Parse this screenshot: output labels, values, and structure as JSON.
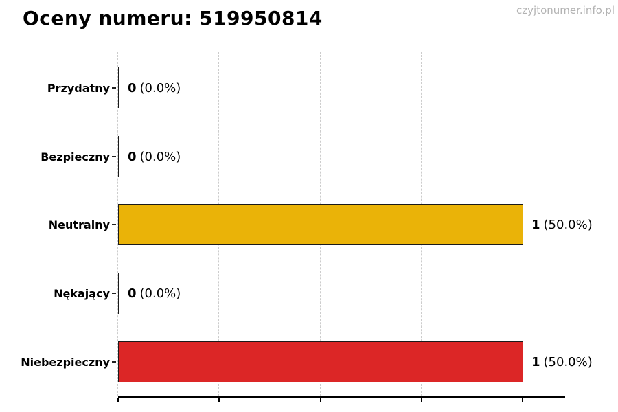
{
  "header": {
    "title": "Oceny numeru: 519950814",
    "watermark": "czyjtonumer.info.pl"
  },
  "chart_data": {
    "type": "bar",
    "orientation": "horizontal",
    "title": "Oceny numeru: 519950814",
    "categories": [
      "Przydatny",
      "Bezpieczny",
      "Neutralny",
      "Nękający",
      "Niebezpieczny"
    ],
    "values": [
      0,
      0,
      1,
      0,
      1
    ],
    "percentages": [
      0.0,
      0.0,
      50.0,
      0.0,
      50.0
    ],
    "value_labels": [
      {
        "count": "0",
        "percent": "(0.0%)"
      },
      {
        "count": "0",
        "percent": "(0.0%)"
      },
      {
        "count": "1",
        "percent": "(50.0%)"
      },
      {
        "count": "0",
        "percent": "(0.0%)"
      },
      {
        "count": "1",
        "percent": "(50.0%)"
      }
    ],
    "bar_colors": [
      null,
      null,
      "#eab308",
      null,
      "#dc2626"
    ],
    "bar_edge_color": "#1a1a1a",
    "xlim": [
      0,
      1.1
    ],
    "xticks": [
      0,
      0.25,
      0.5,
      0.75,
      1.0
    ],
    "xtick_labels_shown": false,
    "grid": {
      "vertical": true,
      "style": "dashed",
      "color": "#cccccc"
    },
    "legend": "none",
    "background": "#ffffff",
    "watermark_color": "#b3b3b3"
  }
}
